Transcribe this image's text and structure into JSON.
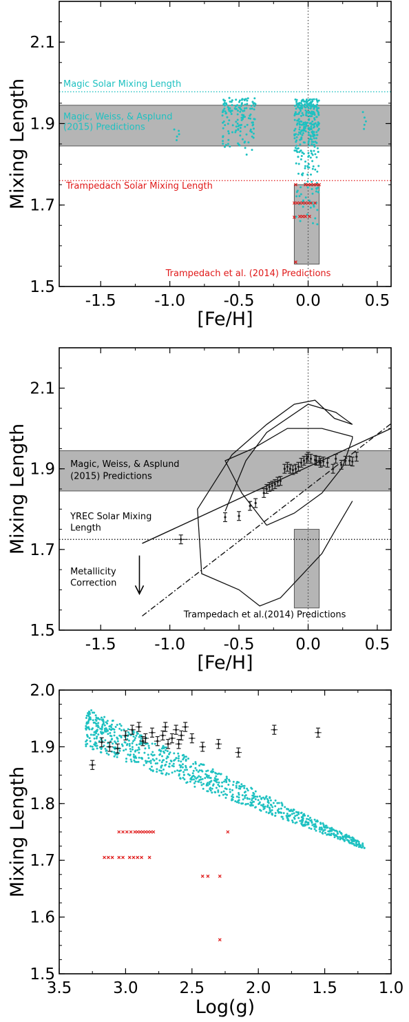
{
  "colors": {
    "magic": "#1ec1c1",
    "trampedach": "#e01818",
    "band": "#b5b5b5",
    "frame": "#000000",
    "points": "#1a1a1a"
  },
  "chart_data": [
    {
      "type": "scatter",
      "xlabel": "[Fe/H]",
      "ylabel": "Mixing Length",
      "xlim": [
        -1.8,
        0.6
      ],
      "ylim": [
        1.5,
        2.2
      ],
      "xticks": [
        -1.5,
        -1.0,
        -0.5,
        0.0,
        0.5
      ],
      "xtick_labels": [
        "-1.5",
        "-1.0",
        "-0.5",
        "0.0",
        "0.5"
      ],
      "yticks": [
        1.5,
        1.7,
        1.9,
        2.1
      ],
      "ytick_labels": [
        "1.5",
        "1.7",
        "1.9",
        "2.1"
      ],
      "bands": [
        {
          "x0": -1.8,
          "x1": 0.6,
          "y0": 1.845,
          "y1": 1.945
        },
        {
          "x0": -0.1,
          "x1": 0.08,
          "y0": 1.555,
          "y1": 1.75
        }
      ],
      "hlines": [
        {
          "y": 1.978,
          "color": "magic"
        },
        {
          "y": 1.76,
          "color": "trampedach"
        }
      ],
      "vline": 0.0,
      "annotations": [
        {
          "text": "Magic Solar Mixing Length",
          "x": -1.77,
          "y": 1.99,
          "color": "magic"
        },
        {
          "text": "Magic, Weiss, & Asplund",
          "x": -1.77,
          "y": 1.91,
          "color": "magic"
        },
        {
          "text": "(2015) Predictions",
          "x": -1.77,
          "y": 1.885,
          "color": "magic"
        },
        {
          "text": "Trampedach Solar Mixing Length",
          "x": -1.75,
          "y": 1.74,
          "color": "trampedach"
        },
        {
          "text": "Trampedach et al. (2014) Predictions",
          "x": -1.03,
          "y": 1.525,
          "color": "trampedach"
        }
      ],
      "groups": [
        {
          "name": "",
          "color": "magic",
          "marker": "dot",
          "clusters": [
            {
              "x0": -0.1,
              "x1": 0.08,
              "y0": 1.76,
              "y1": 1.96,
              "n": 300
            },
            {
              "x0": -0.1,
              "x1": 0.08,
              "y0": 1.62,
              "y1": 1.76,
              "n": 40
            },
            {
              "x0": -0.62,
              "x1": -0.38,
              "y0": 1.82,
              "y1": 1.965,
              "n": 150
            },
            {
              "x0": -1.0,
              "x1": -0.9,
              "y0": 1.83,
              "y1": 1.89,
              "n": 5
            },
            {
              "x0": 0.39,
              "x1": 0.42,
              "y0": 1.87,
              "y1": 1.93,
              "n": 5
            }
          ]
        },
        {
          "name": "",
          "color": "trampedach",
          "marker": "cross",
          "points": [
            [
              -0.02,
              1.75
            ],
            [
              0.0,
              1.75
            ],
            [
              0.02,
              1.75
            ],
            [
              0.04,
              1.75
            ],
            [
              0.06,
              1.75
            ],
            [
              0.08,
              1.75
            ],
            [
              -0.09,
              1.75
            ],
            [
              -0.1,
              1.705
            ],
            [
              -0.08,
              1.705
            ],
            [
              -0.06,
              1.705
            ],
            [
              -0.04,
              1.705
            ],
            [
              -0.02,
              1.705
            ],
            [
              0.0,
              1.705
            ],
            [
              0.02,
              1.705
            ],
            [
              0.05,
              1.705
            ],
            [
              -0.1,
              1.67
            ],
            [
              -0.06,
              1.672
            ],
            [
              -0.04,
              1.672
            ],
            [
              -0.02,
              1.672
            ],
            [
              0.01,
              1.672
            ],
            [
              -0.09,
              1.56
            ]
          ]
        }
      ]
    },
    {
      "type": "scatter",
      "xlabel": "[Fe/H]",
      "ylabel": "Mixing Length",
      "xlim": [
        -1.8,
        0.6
      ],
      "ylim": [
        1.5,
        2.2
      ],
      "xticks": [
        -1.5,
        -1.0,
        -0.5,
        0.0,
        0.5
      ],
      "xtick_labels": [
        "-1.5",
        "-1.0",
        "-0.5",
        "0.0",
        "0.5"
      ],
      "yticks": [
        1.5,
        1.7,
        1.9,
        2.1
      ],
      "ytick_labels": [
        "1.5",
        "1.7",
        "1.9",
        "2.1"
      ],
      "bands": [
        {
          "x0": -1.8,
          "x1": 0.6,
          "y0": 1.845,
          "y1": 1.945
        },
        {
          "x0": -0.1,
          "x1": 0.08,
          "y0": 1.555,
          "y1": 1.75
        }
      ],
      "hlines": [
        {
          "y": 1.725,
          "color": "frame"
        }
      ],
      "vline": 0.0,
      "fit_lines": [
        {
          "x": [
            -1.2,
            0.6
          ],
          "y": [
            1.715,
            2.0
          ],
          "dash": "none"
        },
        {
          "x": [
            -1.2,
            0.6
          ],
          "y": [
            1.535,
            2.012
          ],
          "dash": "8,3,2,3"
        }
      ],
      "contours": [
        [
          [
            -0.6,
            1.795
          ],
          [
            -0.45,
            1.92
          ],
          [
            -0.3,
            1.99
          ],
          [
            0.0,
            2.06
          ],
          [
            0.2,
            2.04
          ],
          [
            0.32,
            2.01
          ],
          [
            0.32,
            2.01
          ],
          [
            0.19,
            2.025
          ],
          [
            0.05,
            2.07
          ],
          [
            -0.1,
            2.06
          ],
          [
            -0.3,
            2.01
          ],
          [
            -0.55,
            1.935
          ],
          [
            -0.8,
            1.8
          ],
          [
            -0.77,
            1.64
          ],
          [
            -0.5,
            1.6
          ],
          [
            -0.35,
            1.56
          ],
          [
            -0.2,
            1.58
          ],
          [
            -0.05,
            1.635
          ],
          [
            0.1,
            1.69
          ],
          [
            0.2,
            1.75
          ],
          [
            0.32,
            1.82
          ]
        ],
        [
          [
            -0.3,
            1.76
          ],
          [
            -0.48,
            1.84
          ],
          [
            -0.6,
            1.92
          ],
          [
            -0.4,
            1.95
          ],
          [
            -0.15,
            2.0
          ],
          [
            0.1,
            2.0
          ],
          [
            0.32,
            1.98
          ],
          [
            0.32,
            1.975
          ],
          [
            0.25,
            1.905
          ],
          [
            0.1,
            1.84
          ],
          [
            -0.1,
            1.79
          ],
          [
            -0.3,
            1.76
          ]
        ]
      ],
      "arrow": {
        "x": -1.22,
        "y_start": 1.685,
        "y_end": 1.59
      },
      "annotations": [
        {
          "text": "Magic, Weiss, & Asplund",
          "x": -1.72,
          "y": 1.905,
          "color": "frame"
        },
        {
          "text": "(2015) Predictions",
          "x": -1.72,
          "y": 1.875,
          "color": "frame"
        },
        {
          "text": "YREC Solar Mixing",
          "x": -1.72,
          "y": 1.775,
          "color": "frame"
        },
        {
          "text": "Length",
          "x": -1.72,
          "y": 1.747,
          "color": "frame"
        },
        {
          "text": "Metallicity",
          "x": -1.72,
          "y": 1.638,
          "color": "frame"
        },
        {
          "text": "Correction",
          "x": -1.72,
          "y": 1.61,
          "color": "frame"
        },
        {
          "text": "Trampedach et al.(2014) Predictions",
          "x": -0.9,
          "y": 1.532,
          "color": "frame"
        }
      ],
      "errorbars": {
        "color": "points",
        "yerr": 0.011,
        "xerr": 0.05,
        "points": [
          [
            -0.92,
            1.725
          ],
          [
            -0.6,
            1.78
          ],
          [
            -0.5,
            1.783
          ],
          [
            -0.42,
            1.808
          ],
          [
            -0.38,
            1.815
          ],
          [
            -0.32,
            1.84
          ],
          [
            -0.3,
            1.85
          ],
          [
            -0.28,
            1.855
          ],
          [
            -0.26,
            1.858
          ],
          [
            -0.24,
            1.862
          ],
          [
            -0.22,
            1.868
          ],
          [
            -0.2,
            1.87
          ],
          [
            -0.17,
            1.9
          ],
          [
            -0.15,
            1.905
          ],
          [
            -0.13,
            1.9
          ],
          [
            -0.11,
            1.897
          ],
          [
            -0.09,
            1.9
          ],
          [
            -0.07,
            1.905
          ],
          [
            -0.05,
            1.915
          ],
          [
            -0.03,
            1.92
          ],
          [
            0.0,
            1.93
          ],
          [
            0.02,
            1.925
          ],
          [
            0.05,
            1.922
          ],
          [
            0.08,
            1.92
          ],
          [
            0.11,
            1.918
          ],
          [
            0.14,
            1.915
          ],
          [
            0.18,
            1.9
          ],
          [
            0.2,
            1.925
          ],
          [
            0.24,
            1.91
          ],
          [
            0.27,
            1.92
          ],
          [
            0.3,
            1.92
          ],
          [
            0.32,
            1.918
          ],
          [
            0.35,
            1.93
          ],
          [
            -0.01,
            1.925
          ],
          [
            0.06,
            1.92
          ],
          [
            0.09,
            1.915
          ]
        ]
      }
    },
    {
      "type": "scatter",
      "xlabel": "Log(g)",
      "ylabel": "Mixing Length",
      "xlim": [
        3.5,
        1.0
      ],
      "ylim": [
        1.5,
        2.0
      ],
      "xticks": [
        3.5,
        3.0,
        2.5,
        2.0,
        1.5,
        1.0
      ],
      "xtick_labels": [
        "3.5",
        "3.0",
        "2.5",
        "2.0",
        "1.5",
        "1.0"
      ],
      "yticks": [
        1.5,
        1.6,
        1.7,
        1.8,
        1.9,
        2.0
      ],
      "ytick_labels": [
        "1.5",
        "1.6",
        "1.7",
        "1.8",
        "1.9",
        "2.0"
      ],
      "groups": [
        {
          "name": "",
          "color": "magic",
          "marker": "dot",
          "band_cloud": {
            "x0": 3.3,
            "x1": 1.2,
            "y_top0": 1.97,
            "y_top1": 1.73,
            "y_bot0": 1.9,
            "y_bot1": 1.72,
            "n": 900
          }
        },
        {
          "name": "",
          "color": "trampedach",
          "marker": "cross",
          "points": [
            [
              3.05,
              1.75
            ],
            [
              3.02,
              1.75
            ],
            [
              2.99,
              1.75
            ],
            [
              2.96,
              1.75
            ],
            [
              2.93,
              1.75
            ],
            [
              2.91,
              1.75
            ],
            [
              2.89,
              1.75
            ],
            [
              2.87,
              1.75
            ],
            [
              2.85,
              1.75
            ],
            [
              2.83,
              1.75
            ],
            [
              2.81,
              1.75
            ],
            [
              2.79,
              1.75
            ],
            [
              3.16,
              1.705
            ],
            [
              3.13,
              1.705
            ],
            [
              3.1,
              1.705
            ],
            [
              3.05,
              1.705
            ],
            [
              3.02,
              1.705
            ],
            [
              2.97,
              1.705
            ],
            [
              2.94,
              1.705
            ],
            [
              2.91,
              1.705
            ],
            [
              2.88,
              1.705
            ],
            [
              2.82,
              1.705
            ],
            [
              2.42,
              1.672
            ],
            [
              2.38,
              1.672
            ],
            [
              2.29,
              1.672
            ],
            [
              2.23,
              1.75
            ],
            [
              2.29,
              1.56
            ]
          ]
        }
      ],
      "errorbars": {
        "color": "points",
        "yerr": 0.008,
        "xerr": 0.025,
        "points": [
          [
            3.25,
            1.868
          ],
          [
            3.18,
            1.908
          ],
          [
            3.12,
            1.9
          ],
          [
            3.06,
            1.897
          ],
          [
            3.0,
            1.92
          ],
          [
            2.95,
            1.93
          ],
          [
            2.9,
            1.935
          ],
          [
            2.85,
            1.915
          ],
          [
            2.8,
            1.925
          ],
          [
            2.76,
            1.91
          ],
          [
            2.72,
            1.92
          ],
          [
            2.68,
            1.905
          ],
          [
            2.65,
            1.915
          ],
          [
            2.62,
            1.93
          ],
          [
            2.58,
            1.92
          ],
          [
            2.55,
            1.935
          ],
          [
            2.5,
            1.915
          ],
          [
            2.42,
            1.9
          ],
          [
            2.3,
            1.905
          ],
          [
            2.15,
            1.89
          ],
          [
            1.88,
            1.93
          ],
          [
            1.55,
            1.925
          ],
          [
            2.87,
            1.91
          ],
          [
            2.7,
            1.935
          ],
          [
            2.6,
            1.905
          ]
        ]
      }
    }
  ]
}
